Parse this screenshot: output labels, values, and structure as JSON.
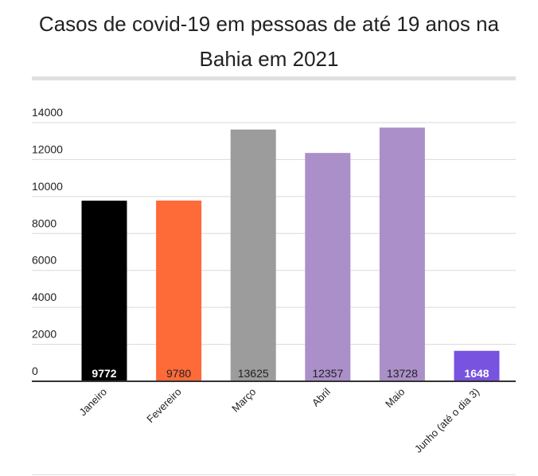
{
  "title_lines": [
    "Casos de covid-19 em pessoas de até 19 anos na",
    "Bahia em 2021"
  ],
  "chart_data": {
    "type": "bar",
    "title": "Casos de covid-19 em pessoas de até 19 anos na Bahia em 2021",
    "xlabel": "",
    "ylabel": "",
    "ylim": [
      0,
      14000
    ],
    "yticks": [
      "0",
      "2000",
      "4000",
      "6000",
      "8000",
      "10000",
      "12000",
      "14000"
    ],
    "grid": true,
    "legend": "none",
    "categories": [
      "Janeiro",
      "Fevereiro",
      "Março",
      "Abril",
      "Maio",
      "Junho (até o dia 3)"
    ],
    "values": [
      9772,
      9780,
      13625,
      12357,
      13728,
      1648
    ],
    "data_labels": [
      "9772",
      "9780",
      "13625",
      "12357",
      "13728",
      "1648"
    ],
    "bar_colors": [
      "#000000",
      "#ff6a39",
      "#9c9c9c",
      "#aa8fc8",
      "#aa8fc8",
      "#7753df"
    ],
    "label_colors": [
      "#ffffff",
      "#222222",
      "#222222",
      "#222222",
      "#222222",
      "#ffffff"
    ],
    "gridline_color": "#d9d9d9",
    "axis_color": "#333333"
  }
}
